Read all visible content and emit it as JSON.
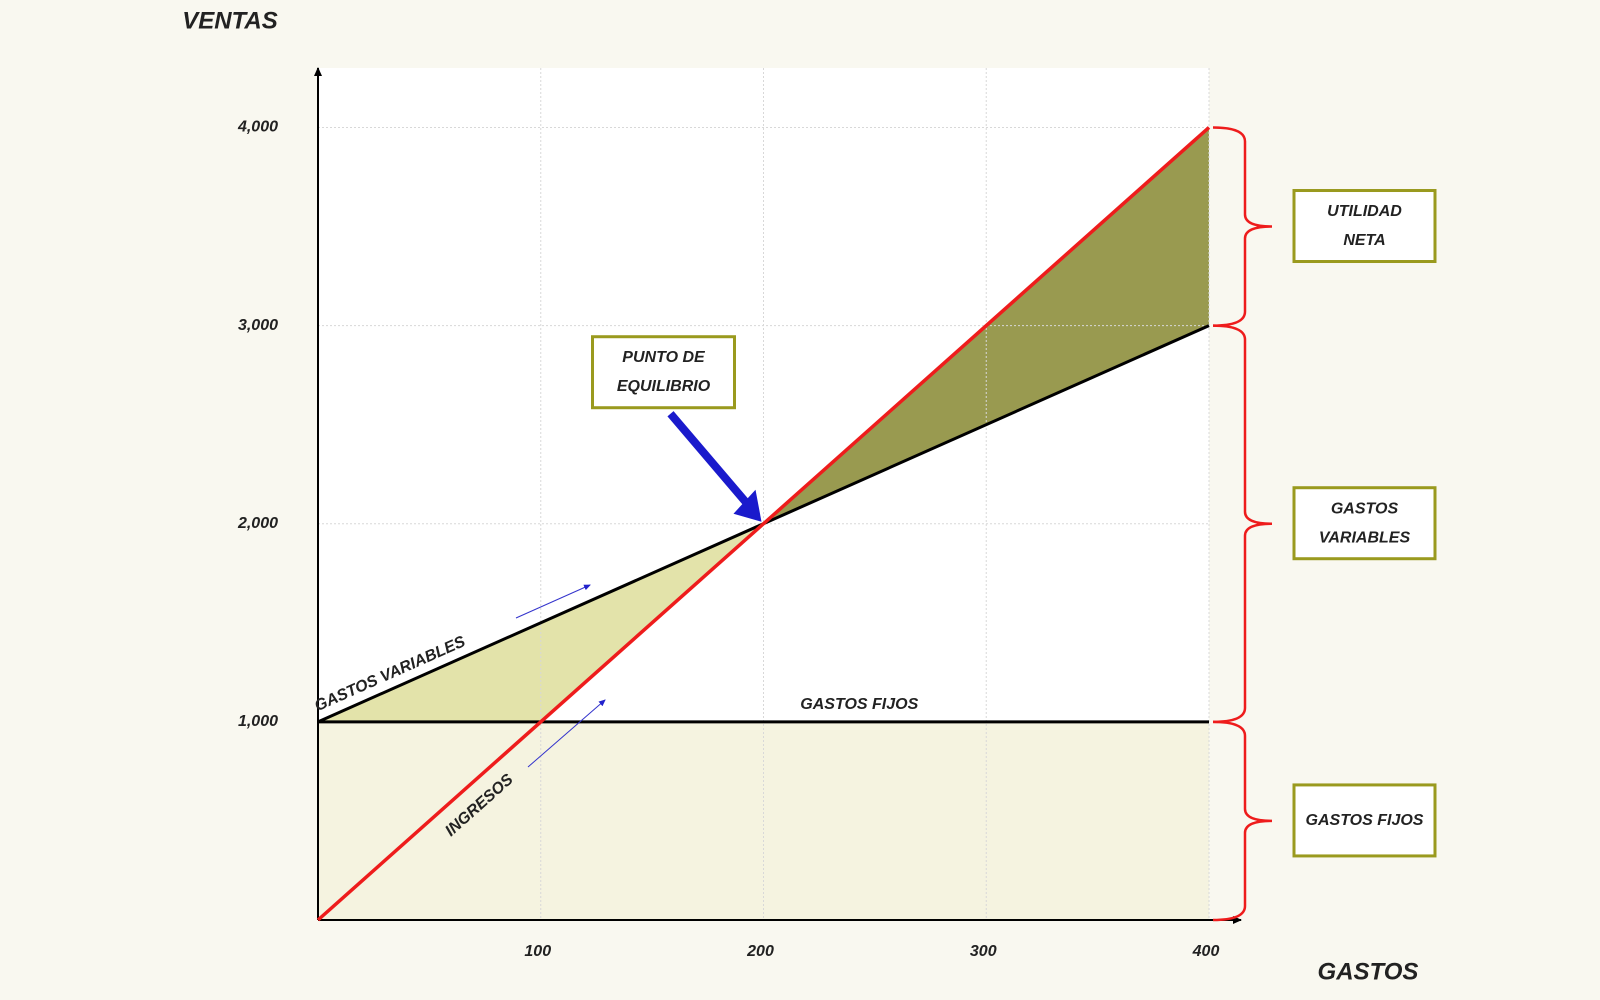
{
  "chart_data": {
    "type": "line",
    "xlabel": "GASTOS",
    "ylabel": "VENTAS",
    "xlim": [
      0,
      400
    ],
    "ylim": [
      0,
      4300
    ],
    "xticks": [
      100,
      200,
      300,
      400
    ],
    "yticks": [
      {
        "value": 1000,
        "label": "1,000"
      },
      {
        "value": 2000,
        "label": "2,000"
      },
      {
        "value": 3000,
        "label": "3,000"
      },
      {
        "value": 4000,
        "label": "4,000"
      }
    ],
    "grid": true,
    "series": [
      {
        "name": "INGRESOS",
        "color": "#ee1c1c",
        "x": [
          0,
          400
        ],
        "values": [
          0,
          4000
        ]
      },
      {
        "name": "GASTOS VARIABLES",
        "color": "#000000",
        "x": [
          0,
          400
        ],
        "values": [
          1000,
          3000
        ]
      },
      {
        "name": "GASTOS FIJOS",
        "color": "#000000",
        "x": [
          0,
          400
        ],
        "values": [
          1000,
          1000
        ]
      }
    ],
    "loss_color": "#e3e3aa",
    "profit_color": "#999a50",
    "fixed_color": "#f5f3e0",
    "break_even": {
      "label": [
        "PUNTO DE",
        "EQUILIBRIO"
      ],
      "x": 200,
      "y": 2000
    },
    "brackets": [
      {
        "label": [
          "UTILIDAD",
          "NETA"
        ],
        "from": 3000,
        "to": 4000
      },
      {
        "label": [
          "GASTOS",
          "VARIABLES"
        ],
        "from": 1000,
        "to": 3000
      },
      {
        "label": [
          "GASTOS FIJOS"
        ],
        "from": 0,
        "to": 1000
      }
    ]
  }
}
